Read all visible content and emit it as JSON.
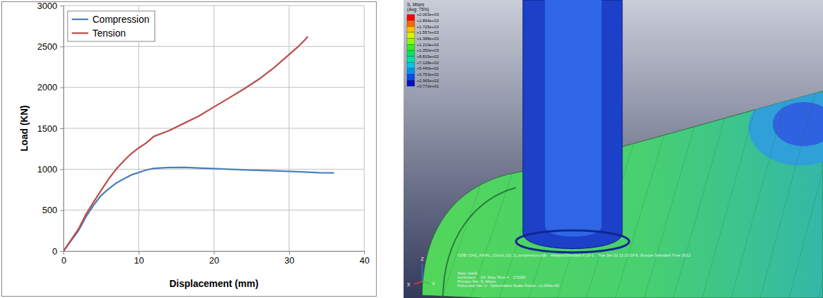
{
  "chart_data": {
    "type": "line",
    "xlabel": "Displacement (mm)",
    "ylabel": "Load (KN)",
    "xlim": [
      0,
      40
    ],
    "xticks": [
      0,
      10,
      20,
      30,
      40
    ],
    "ylim": [
      0,
      3000
    ],
    "yticks": [
      0,
      500,
      1000,
      1500,
      2000,
      2500,
      3000
    ],
    "grid": true,
    "legend": "top-left",
    "series": [
      {
        "name": "Compression",
        "color": "#4a7ebb",
        "x": [
          0,
          2,
          3,
          4,
          5,
          6,
          7,
          8,
          9,
          10,
          11,
          12,
          14,
          16,
          18,
          20,
          22,
          25,
          28,
          31,
          34,
          36
        ],
        "values": [
          0,
          250,
          420,
          560,
          680,
          760,
          830,
          880,
          930,
          960,
          990,
          1010,
          1020,
          1022,
          1015,
          1008,
          1000,
          990,
          980,
          970,
          958,
          955
        ]
      },
      {
        "name": "Tension",
        "color": "#be4b48",
        "x": [
          0,
          2,
          3,
          4,
          5,
          6,
          7,
          8,
          9,
          10,
          11,
          12,
          14,
          16,
          18,
          20,
          22,
          24,
          26,
          28,
          30,
          31,
          32,
          32.5
        ],
        "values": [
          0,
          270,
          450,
          600,
          740,
          880,
          1000,
          1100,
          1190,
          1260,
          1320,
          1400,
          1470,
          1560,
          1650,
          1760,
          1870,
          1980,
          2100,
          2240,
          2400,
          2480,
          2570,
          2620
        ]
      }
    ]
  },
  "fea_view": {
    "contour_legend": {
      "title": "S, Mises",
      "subtitle": "(Avg: 75%)",
      "values": [
        2063,
        1894,
        1725,
        1557,
        1388,
        1219,
        1050,
        881.5,
        712.8,
        544.0,
        375.3,
        206.5,
        37.72
      ],
      "labels": [
        "+2.063e+03",
        "+1.894e+03",
        "+1.725e+03",
        "+1.557e+03",
        "+1.388e+03",
        "+1.219e+03",
        "+1.050e+03",
        "+8.815e+02",
        "+7.128e+02",
        "+5.440e+02",
        "+3.753e+02",
        "+2.065e+02",
        "+3.772e+01"
      ]
    },
    "info_lines": [
      "ODB: CHS_AXIAL_Chord_t12_5_compresion.odb    Abaqus/Standard 6.10-1    Tue Jan 31 11:22:19 E. Europe Standard Time 2012",
      "Step: load1",
      "Increment     24: Step Time =    0.5180",
      "Primary Var: S, Mises",
      "Deformed Var: U   Deformation Scale Factor: +1.000e+00"
    ],
    "triad_labels": [
      "Z",
      "X",
      "Y"
    ]
  }
}
